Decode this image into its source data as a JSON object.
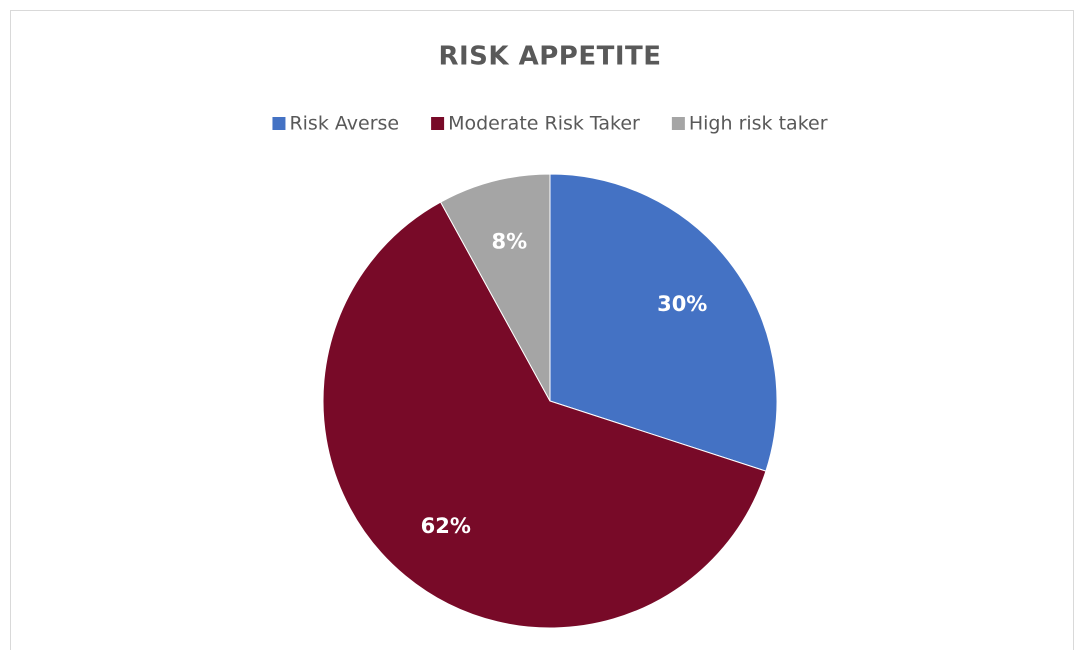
{
  "chart_data": {
    "type": "pie",
    "title": "RISK APPETITE",
    "categories": [
      "Risk Averse",
      "Moderate Risk Taker",
      "High risk taker"
    ],
    "values": [
      30,
      62,
      8
    ],
    "value_labels": [
      "30%",
      "62%",
      "8%"
    ],
    "colors": [
      "#4472c4",
      "#780a28",
      "#a5a5a5"
    ],
    "legend": "top"
  }
}
